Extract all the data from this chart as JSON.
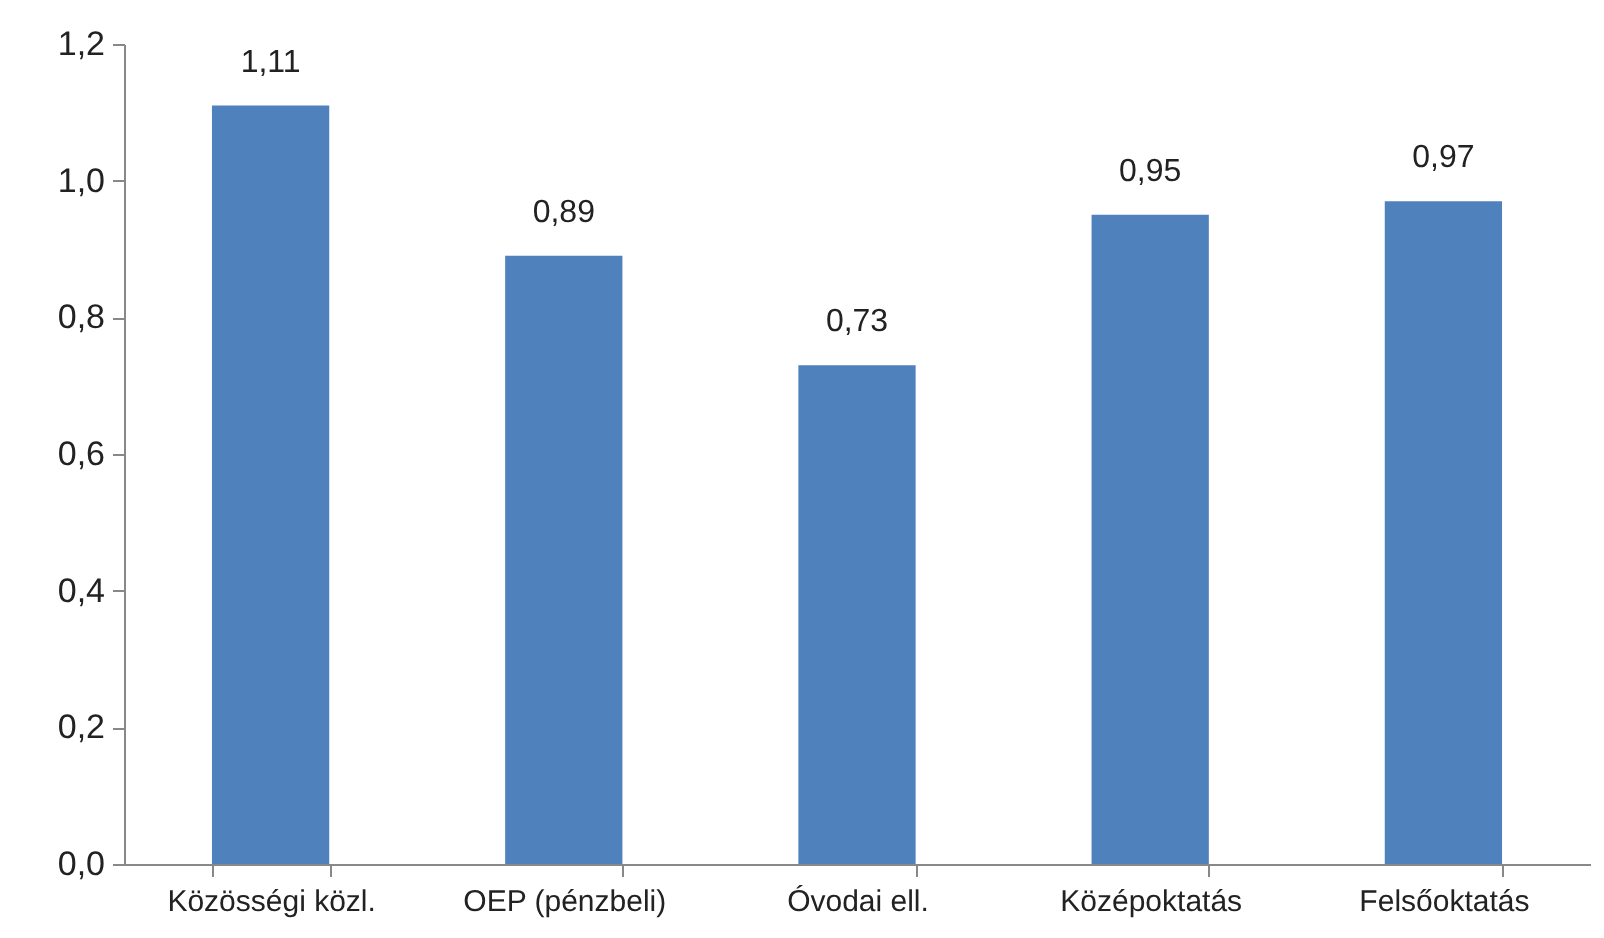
{
  "chart_data": {
    "type": "bar",
    "categories": [
      "Közösségi közl.",
      "OEP (pénzbeli)",
      "Óvodai ell.",
      "Középoktatás",
      "Felsőoktatás"
    ],
    "values": [
      1.11,
      0.89,
      0.73,
      0.95,
      0.97
    ],
    "value_labels": [
      "1,11",
      "0,89",
      "0,73",
      "0,95",
      "0,97"
    ],
    "color": "#4f81bd",
    "ylim": [
      0,
      1.2
    ],
    "yticks": [
      {
        "value": 0,
        "label": "0,0"
      },
      {
        "value": 0.2,
        "label": "0,2"
      },
      {
        "value": 0.4,
        "label": "0,4"
      },
      {
        "value": 0.6,
        "label": "0,6"
      },
      {
        "value": 0.8,
        "label": "0,8"
      },
      {
        "value": 1.0,
        "label": "1,0"
      },
      {
        "value": 1.2,
        "label": "1,2"
      }
    ],
    "grid": false
  }
}
